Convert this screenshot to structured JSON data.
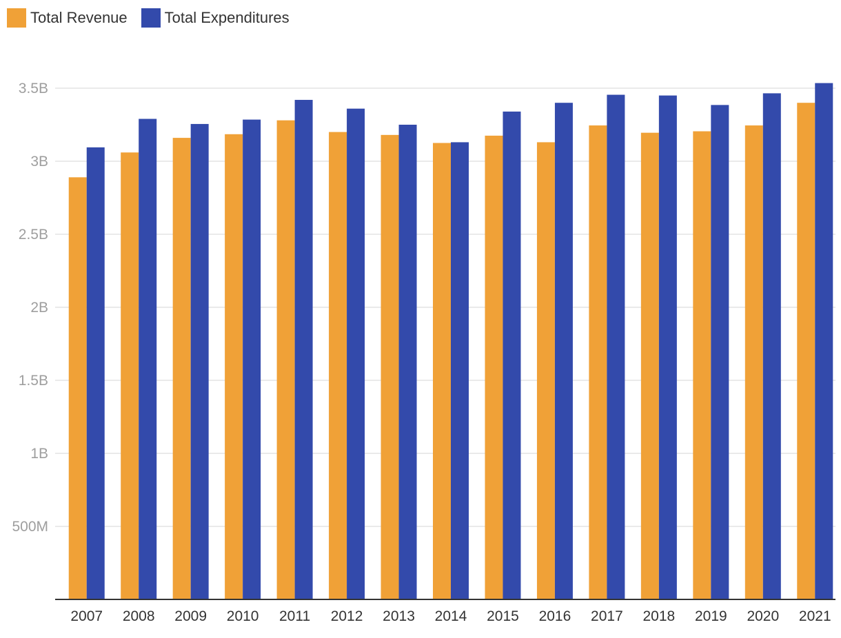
{
  "colors": {
    "revenue": "#f0a137",
    "expenditures": "#334aab",
    "grid": "#e3e3e3",
    "axis": "#333333"
  },
  "chart_data": {
    "type": "bar",
    "title": "",
    "xlabel": "",
    "ylabel": "",
    "categories": [
      "2007",
      "2008",
      "2009",
      "2010",
      "2011",
      "2012",
      "2013",
      "2014",
      "2015",
      "2016",
      "2017",
      "2018",
      "2019",
      "2020",
      "2021"
    ],
    "series": [
      {
        "name": "Total Revenue",
        "color": "#f0a137",
        "values": [
          2890000000.0,
          3060000000.0,
          3160000000.0,
          3185000000.0,
          3280000000.0,
          3200000000.0,
          3180000000.0,
          3125000000.0,
          3175000000.0,
          3130000000.0,
          3245000000.0,
          3195000000.0,
          3205000000.0,
          3245000000.0,
          3400000000.0
        ]
      },
      {
        "name": "Total Expenditures",
        "color": "#334aab",
        "values": [
          3095000000.0,
          3290000000.0,
          3255000000.0,
          3285000000.0,
          3420000000.0,
          3360000000.0,
          3250000000.0,
          3130000000.0,
          3340000000.0,
          3400000000.0,
          3455000000.0,
          3450000000.0,
          3385000000.0,
          3465000000.0,
          3535000000.0
        ]
      }
    ],
    "ylim": [
      0,
      3500000000.0
    ],
    "yticks": [
      {
        "value": 500000000.0,
        "label": "500M"
      },
      {
        "value": 1000000000.0,
        "label": "1B"
      },
      {
        "value": 1500000000.0,
        "label": "1.5B"
      },
      {
        "value": 2000000000.0,
        "label": "2B"
      },
      {
        "value": 2500000000.0,
        "label": "2.5B"
      },
      {
        "value": 3000000000.0,
        "label": "3B"
      },
      {
        "value": 3500000000.0,
        "label": "3.5B"
      }
    ],
    "grid": true,
    "legend": "top-left"
  }
}
